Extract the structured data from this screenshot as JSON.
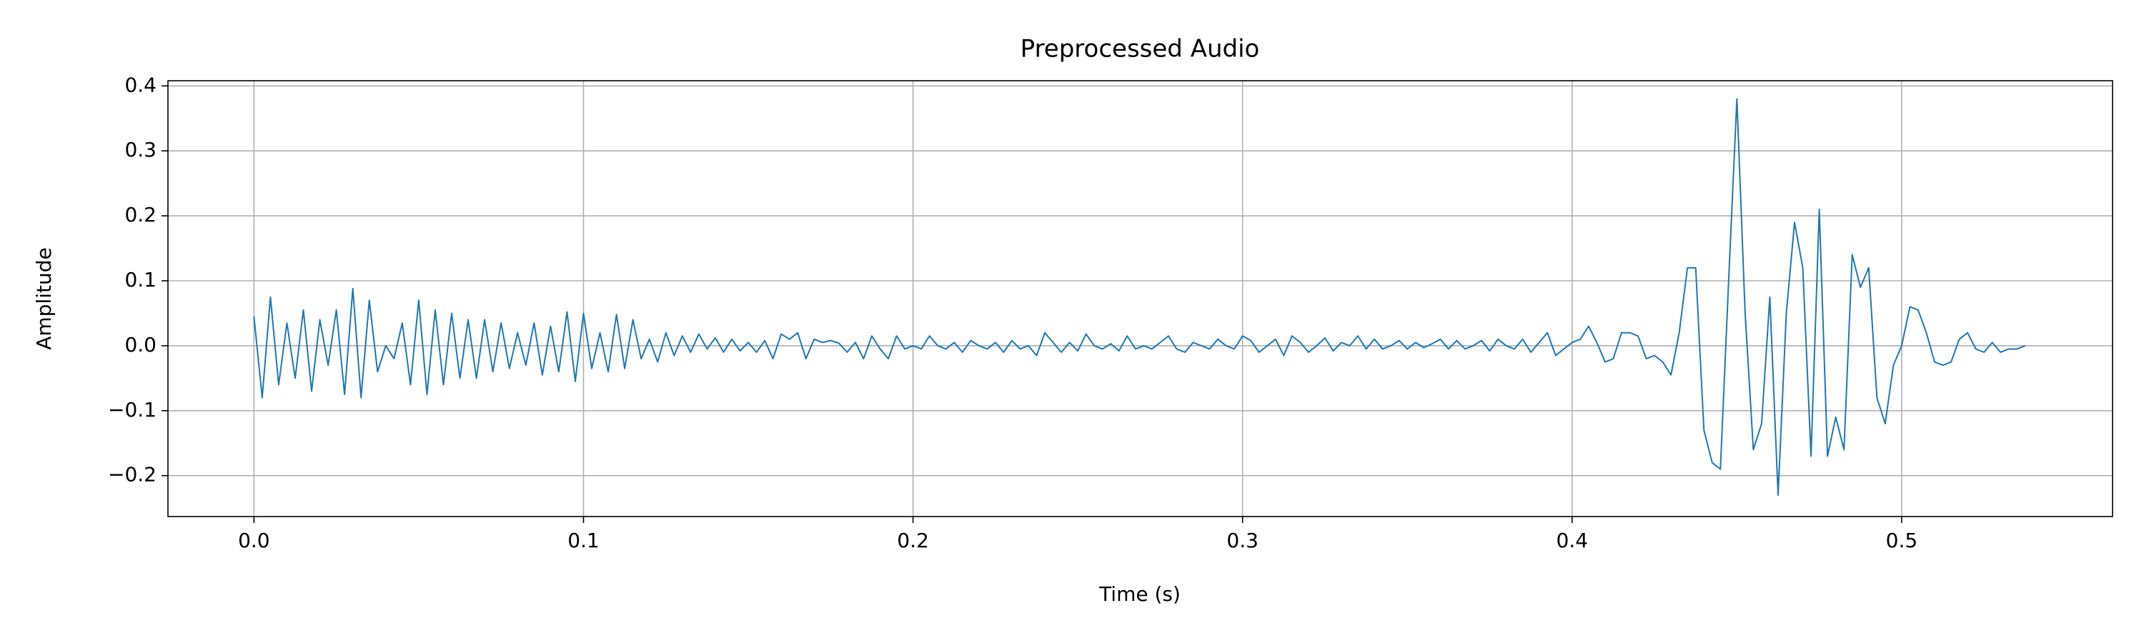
{
  "chart_data": {
    "type": "line",
    "title": "Preprocessed Audio",
    "x_label": "Time (s)",
    "y_label": "Amplitude",
    "color": "#1f77b4",
    "grid": true,
    "xlim": [
      -0.0261,
      0.564
    ],
    "ylim": [
      -0.263,
      0.408
    ],
    "xticks": [
      {
        "value": 0,
        "label": "0.0"
      },
      0.1,
      0.2,
      0.3,
      0.4,
      0.5
    ],
    "yticks": [
      {
        "value": -0.2,
        "label": "−0.2"
      },
      {
        "value": -0.1,
        "label": "−0.1"
      },
      {
        "value": 0,
        "label": "0.0"
      },
      0.1,
      0.2,
      0.3,
      0.4
    ],
    "x": [
      0,
      0.0025,
      0.005,
      0.0075,
      0.01,
      0.0125,
      0.015,
      0.0175,
      0.02,
      0.0225,
      0.025,
      0.0275,
      0.03,
      0.0325,
      0.035,
      0.0375,
      0.04,
      0.0425,
      0.045,
      0.0475,
      0.05,
      0.0525,
      0.055,
      0.0575,
      0.06,
      0.0625,
      0.065,
      0.0675,
      0.07,
      0.0725,
      0.075,
      0.0775,
      0.08,
      0.0825,
      0.085,
      0.0875,
      0.09,
      0.0925,
      0.095,
      0.0975,
      0.1,
      0.1025,
      0.105,
      0.1075,
      0.11,
      0.1125,
      0.115,
      0.1175,
      0.12,
      0.1225,
      0.125,
      0.1275,
      0.13,
      0.1325,
      0.135,
      0.1375,
      0.14,
      0.1425,
      0.145,
      0.1475,
      0.15,
      0.1525,
      0.155,
      0.1575,
      0.16,
      0.1625,
      0.165,
      0.1675,
      0.17,
      0.1725,
      0.175,
      0.1775,
      0.18,
      0.1825,
      0.185,
      0.1875,
      0.19,
      0.1925,
      0.195,
      0.1975,
      0.2,
      0.2025,
      0.205,
      0.2075,
      0.21,
      0.2125,
      0.215,
      0.2175,
      0.22,
      0.2225,
      0.225,
      0.2275,
      0.23,
      0.2325,
      0.235,
      0.2375,
      0.24,
      0.2425,
      0.245,
      0.2475,
      0.25,
      0.2525,
      0.255,
      0.2575,
      0.26,
      0.2625,
      0.265,
      0.2675,
      0.27,
      0.2725,
      0.275,
      0.2775,
      0.28,
      0.2825,
      0.285,
      0.2875,
      0.29,
      0.2925,
      0.295,
      0.2975,
      0.3,
      0.3025,
      0.305,
      0.3075,
      0.31,
      0.3125,
      0.315,
      0.3175,
      0.32,
      0.3225,
      0.325,
      0.3275,
      0.33,
      0.3325,
      0.335,
      0.3375,
      0.34,
      0.3425,
      0.345,
      0.3475,
      0.35,
      0.3525,
      0.355,
      0.3575,
      0.36,
      0.3625,
      0.365,
      0.3675,
      0.37,
      0.3725,
      0.375,
      0.3775,
      0.38,
      0.3825,
      0.385,
      0.3875,
      0.39,
      0.3925,
      0.395,
      0.3975,
      0.4,
      0.4025,
      0.405,
      0.4075,
      0.41,
      0.4125,
      0.415,
      0.4175,
      0.42,
      0.4225,
      0.425,
      0.4275,
      0.43,
      0.4325,
      0.435,
      0.4375,
      0.44,
      0.4425,
      0.445,
      0.4475,
      0.45,
      0.4525,
      0.455,
      0.4575,
      0.46,
      0.4625,
      0.465,
      0.4675,
      0.47,
      0.4725,
      0.475,
      0.4775,
      0.48,
      0.4825,
      0.485,
      0.4875,
      0.49,
      0.4925,
      0.495,
      0.4975,
      0.5,
      0.5025,
      0.505,
      0.5075,
      0.51,
      0.5125,
      0.515,
      0.5175,
      0.52,
      0.5225,
      0.525,
      0.5275,
      0.53,
      0.5325,
      0.535,
      0.5375
    ],
    "values": [
      0.045,
      -0.08,
      0.075,
      -0.06,
      0.035,
      -0.05,
      0.055,
      -0.07,
      0.04,
      -0.03,
      0.055,
      -0.075,
      0.088,
      -0.08,
      0.07,
      -0.04,
      0.0,
      -0.02,
      0.035,
      -0.06,
      0.07,
      -0.075,
      0.055,
      -0.06,
      0.05,
      -0.05,
      0.04,
      -0.05,
      0.04,
      -0.04,
      0.035,
      -0.035,
      0.02,
      -0.03,
      0.035,
      -0.045,
      0.03,
      -0.04,
      0.052,
      -0.055,
      0.05,
      -0.035,
      0.02,
      -0.04,
      0.048,
      -0.035,
      0.04,
      -0.02,
      0.01,
      -0.025,
      0.02,
      -0.015,
      0.015,
      -0.01,
      0.018,
      -0.005,
      0.012,
      -0.01,
      0.01,
      -0.008,
      0.005,
      -0.01,
      0.008,
      -0.02,
      0.018,
      0.01,
      0.02,
      -0.02,
      0.01,
      0.005,
      0.008,
      0.004,
      -0.01,
      0.005,
      -0.02,
      0.015,
      -0.005,
      -0.02,
      0.015,
      -0.005,
      0.0,
      -0.005,
      0.015,
      0.0,
      -0.005,
      0.005,
      -0.01,
      0.008,
      0.0,
      -0.005,
      0.005,
      -0.01,
      0.008,
      -0.005,
      0.0,
      -0.015,
      0.02,
      0.005,
      -0.01,
      0.005,
      -0.008,
      0.018,
      0.0,
      -0.005,
      0.003,
      -0.008,
      0.015,
      -0.005,
      0.0,
      -0.005,
      0.005,
      0.015,
      -0.005,
      -0.01,
      0.005,
      0.0,
      -0.005,
      0.01,
      0.0,
      -0.005,
      0.015,
      0.008,
      -0.01,
      0.0,
      0.01,
      -0.015,
      0.015,
      0.005,
      -0.01,
      0.0,
      0.012,
      -0.008,
      0.005,
      0.0,
      0.015,
      -0.005,
      0.01,
      -0.005,
      0.0,
      0.008,
      -0.005,
      0.005,
      -0.003,
      0.003,
      0.01,
      -0.005,
      0.008,
      -0.005,
      0.0,
      0.008,
      -0.008,
      0.01,
      0.0,
      -0.005,
      0.01,
      -0.01,
      0.005,
      0.02,
      -0.015,
      -0.005,
      0.005,
      0.01,
      0.03,
      0.005,
      -0.025,
      -0.02,
      0.02,
      0.02,
      0.015,
      -0.02,
      -0.015,
      -0.025,
      -0.045,
      0.02,
      0.12,
      0.12,
      -0.13,
      -0.18,
      -0.19,
      0.1,
      0.38,
      0.05,
      -0.16,
      -0.12,
      0.075,
      -0.23,
      0.05,
      0.19,
      0.12,
      -0.17,
      0.21,
      -0.17,
      -0.11,
      -0.16,
      0.14,
      0.09,
      0.12,
      -0.08,
      -0.12,
      -0.03,
      0.0,
      0.06,
      0.055,
      0.02,
      -0.025,
      -0.03,
      -0.025,
      0.01,
      0.02,
      -0.005,
      -0.01,
      0.005,
      -0.01,
      -0.005,
      -0.005,
      0.0
    ]
  }
}
